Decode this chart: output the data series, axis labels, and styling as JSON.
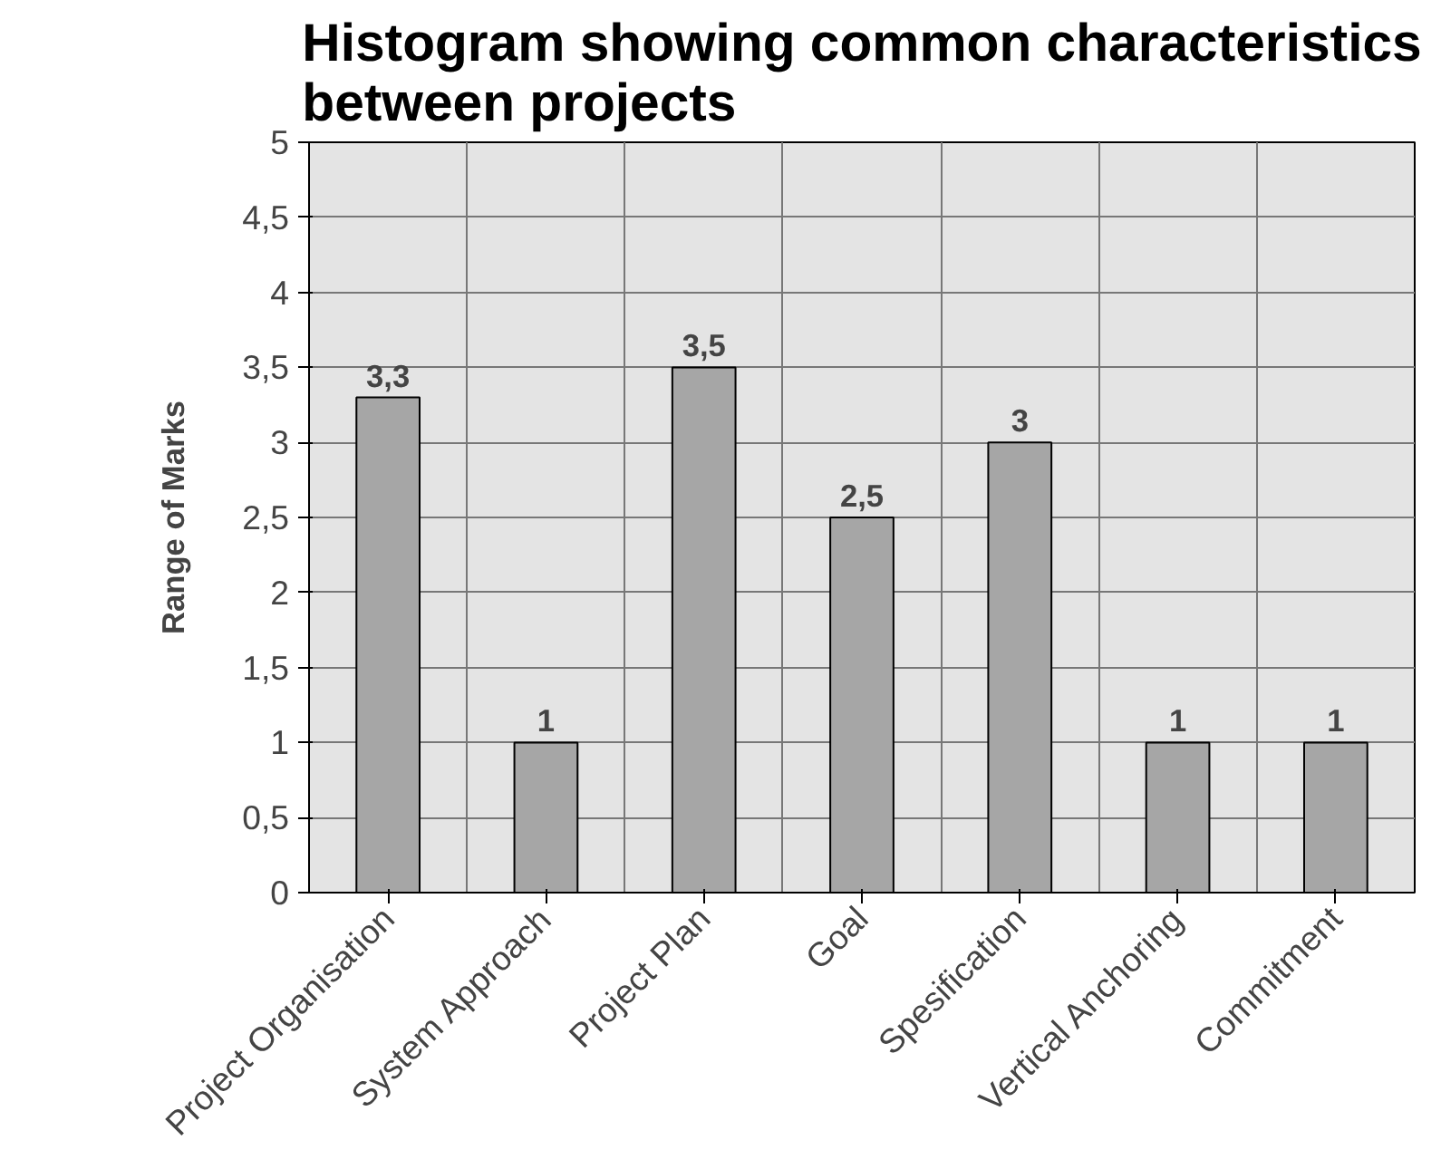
{
  "chart_data": {
    "type": "bar",
    "title": "Histogram showing common characteristics between projects",
    "ylabel": "Range of Marks",
    "categories": [
      "Project Organisation",
      "System Approach",
      "Project Plan",
      "Goal",
      "Spesification",
      "Vertical Anchoring",
      "Commitment"
    ],
    "values": [
      3.3,
      1,
      3.5,
      2.5,
      3,
      1,
      1
    ],
    "value_labels": [
      "3,3",
      "1",
      "3,5",
      "2,5",
      "3",
      "1",
      "1"
    ],
    "color": "#a6a6a6",
    "ylim": [
      0,
      5
    ],
    "yticks": [
      0,
      {
        "value": 0.5,
        "label": "0,5"
      },
      1,
      {
        "value": 1.5,
        "label": "1,5"
      },
      2,
      {
        "value": 2.5,
        "label": "2,5"
      },
      3,
      {
        "value": 3.5,
        "label": "3,5"
      },
      4,
      {
        "value": 4.5,
        "label": "4,5"
      },
      5
    ],
    "grid": true
  }
}
